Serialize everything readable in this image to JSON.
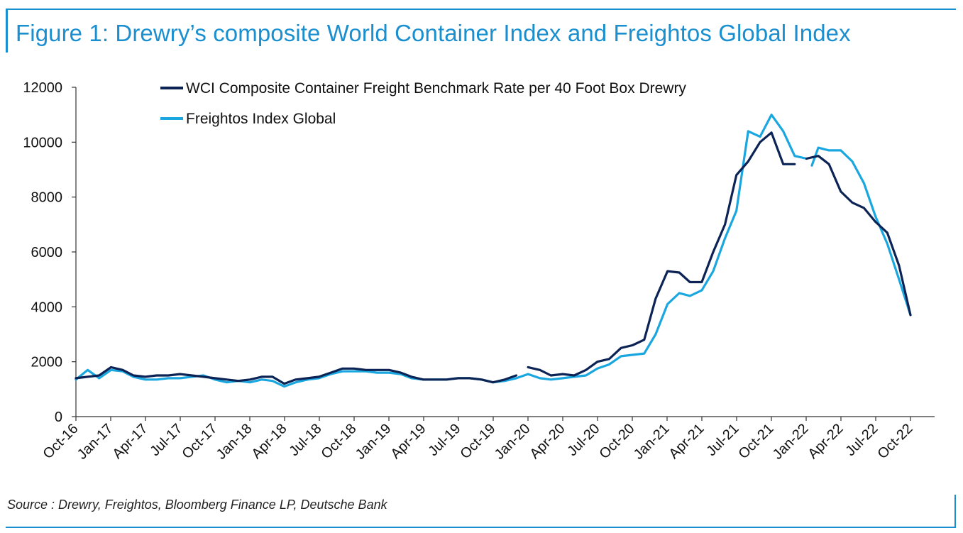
{
  "header": {
    "title": "Figure 1: Drewry’s composite World Container Index and Freightos Global Index"
  },
  "footer": {
    "source": "Source : Drewry, Freightos, Bloomberg Finance LP, Deutsche Bank"
  },
  "colors": {
    "accent": "#1a8fcf",
    "wci": "#0c2355",
    "freightos": "#1aa7e0"
  },
  "chart_data": {
    "type": "line",
    "ylim": [
      0,
      12000
    ],
    "y_ticks": [
      0,
      2000,
      4000,
      6000,
      8000,
      10000,
      12000
    ],
    "y_tick_labels": [
      "0",
      "2000",
      "4000",
      "6000",
      "8000",
      "10000",
      "12000"
    ],
    "x_range": [
      "2016-10",
      "2022-10"
    ],
    "x_tick_labels": [
      "Oct-16",
      "Jan-17",
      "Apr-17",
      "Jul-17",
      "Oct-17",
      "Jan-18",
      "Apr-18",
      "Jul-18",
      "Oct-18",
      "Jan-19",
      "Apr-19",
      "Jul-19",
      "Oct-19",
      "Jan-20",
      "Apr-20",
      "Jul-20",
      "Oct-20",
      "Jan-21",
      "Apr-21",
      "Jul-21",
      "Oct-21",
      "Jan-22",
      "Apr-22",
      "Jul-22",
      "Oct-22"
    ],
    "grid": false,
    "legend": "top-left",
    "series": [
      {
        "name": "WCI Composite Container Freight Benchmark Rate per 40 Foot Box Drewry",
        "color": "#0c2355",
        "points": [
          [
            "2016-10-01",
            1400
          ],
          [
            "2016-11-01",
            1450
          ],
          [
            "2016-12-01",
            1500
          ],
          [
            "2017-01-01",
            1800
          ],
          [
            "2017-02-01",
            1700
          ],
          [
            "2017-03-01",
            1500
          ],
          [
            "2017-04-01",
            1450
          ],
          [
            "2017-05-01",
            1500
          ],
          [
            "2017-06-01",
            1500
          ],
          [
            "2017-07-01",
            1550
          ],
          [
            "2017-08-01",
            1500
          ],
          [
            "2017-09-01",
            1450
          ],
          [
            "2017-10-01",
            1400
          ],
          [
            "2017-11-01",
            1350
          ],
          [
            "2017-12-01",
            1300
          ],
          [
            "2018-01-01",
            1350
          ],
          [
            "2018-02-01",
            1450
          ],
          [
            "2018-03-01",
            1450
          ],
          [
            "2018-04-01",
            1200
          ],
          [
            "2018-05-01",
            1350
          ],
          [
            "2018-06-01",
            1400
          ],
          [
            "2018-07-01",
            1450
          ],
          [
            "2018-08-01",
            1600
          ],
          [
            "2018-09-01",
            1750
          ],
          [
            "2018-10-01",
            1750
          ],
          [
            "2018-11-01",
            1700
          ],
          [
            "2018-12-01",
            1700
          ],
          [
            "2019-01-01",
            1700
          ],
          [
            "2019-02-01",
            1600
          ],
          [
            "2019-03-01",
            1450
          ],
          [
            "2019-04-01",
            1350
          ],
          [
            "2019-05-01",
            1350
          ],
          [
            "2019-06-01",
            1350
          ],
          [
            "2019-07-01",
            1400
          ],
          [
            "2019-08-01",
            1400
          ],
          [
            "2019-09-01",
            1350
          ],
          [
            "2019-10-01",
            1250
          ],
          [
            "2019-11-01",
            1350
          ],
          [
            "2019-12-01",
            1500
          ]
        ],
        "points_segment_2": [
          [
            "2020-01-01",
            1800
          ],
          [
            "2020-02-01",
            1700
          ],
          [
            "2020-03-01",
            1500
          ],
          [
            "2020-04-01",
            1550
          ],
          [
            "2020-05-01",
            1500
          ],
          [
            "2020-06-01",
            1700
          ],
          [
            "2020-07-01",
            2000
          ],
          [
            "2020-08-01",
            2100
          ],
          [
            "2020-09-01",
            2500
          ],
          [
            "2020-10-01",
            2600
          ],
          [
            "2020-11-01",
            2800
          ],
          [
            "2020-12-01",
            4300
          ],
          [
            "2021-01-01",
            5300
          ],
          [
            "2021-02-01",
            5250
          ],
          [
            "2021-03-01",
            4900
          ],
          [
            "2021-04-01",
            4900
          ],
          [
            "2021-05-01",
            6000
          ],
          [
            "2021-06-01",
            7000
          ],
          [
            "2021-07-01",
            8800
          ],
          [
            "2021-08-01",
            9300
          ],
          [
            "2021-09-01",
            10000
          ],
          [
            "2021-10-01",
            10350
          ],
          [
            "2021-11-01",
            9200
          ],
          [
            "2021-12-01",
            9200
          ]
        ],
        "points_segment_3": [
          [
            "2022-01-01",
            9400
          ],
          [
            "2022-02-01",
            9500
          ],
          [
            "2022-03-01",
            9200
          ],
          [
            "2022-04-01",
            8200
          ],
          [
            "2022-05-01",
            7800
          ],
          [
            "2022-06-01",
            7600
          ],
          [
            "2022-07-01",
            7100
          ],
          [
            "2022-08-01",
            6700
          ],
          [
            "2022-09-01",
            5500
          ],
          [
            "2022-10-01",
            3700
          ]
        ]
      },
      {
        "name": "Freightos Index Global",
        "color": "#1aa7e0",
        "points": [
          [
            "2016-10-01",
            1350
          ],
          [
            "2016-11-01",
            1700
          ],
          [
            "2016-12-01",
            1400
          ],
          [
            "2017-01-01",
            1700
          ],
          [
            "2017-02-01",
            1650
          ],
          [
            "2017-03-01",
            1450
          ],
          [
            "2017-04-01",
            1350
          ],
          [
            "2017-05-01",
            1350
          ],
          [
            "2017-06-01",
            1400
          ],
          [
            "2017-07-01",
            1400
          ],
          [
            "2017-08-01",
            1450
          ],
          [
            "2017-09-01",
            1500
          ],
          [
            "2017-10-01",
            1350
          ],
          [
            "2017-11-01",
            1250
          ],
          [
            "2017-12-01",
            1300
          ],
          [
            "2018-01-01",
            1250
          ],
          [
            "2018-02-01",
            1350
          ],
          [
            "2018-03-01",
            1300
          ],
          [
            "2018-04-01",
            1100
          ],
          [
            "2018-05-01",
            1250
          ],
          [
            "2018-06-01",
            1350
          ],
          [
            "2018-07-01",
            1400
          ],
          [
            "2018-08-01",
            1550
          ],
          [
            "2018-09-01",
            1650
          ],
          [
            "2018-10-01",
            1650
          ],
          [
            "2018-11-01",
            1650
          ],
          [
            "2018-12-01",
            1600
          ],
          [
            "2019-01-01",
            1600
          ],
          [
            "2019-02-01",
            1550
          ],
          [
            "2019-03-01",
            1400
          ],
          [
            "2019-04-01",
            1350
          ],
          [
            "2019-05-01",
            1350
          ],
          [
            "2019-06-01",
            1350
          ],
          [
            "2019-07-01",
            1400
          ],
          [
            "2019-08-01",
            1400
          ],
          [
            "2019-09-01",
            1350
          ],
          [
            "2019-10-01",
            1250
          ],
          [
            "2019-11-01",
            1300
          ],
          [
            "2019-12-01",
            1400
          ],
          [
            "2020-01-01",
            1550
          ],
          [
            "2020-02-01",
            1400
          ],
          [
            "2020-03-01",
            1350
          ],
          [
            "2020-04-01",
            1400
          ],
          [
            "2020-05-01",
            1450
          ],
          [
            "2020-06-01",
            1500
          ],
          [
            "2020-07-01",
            1750
          ],
          [
            "2020-08-01",
            1900
          ],
          [
            "2020-09-01",
            2200
          ],
          [
            "2020-10-01",
            2250
          ],
          [
            "2020-11-01",
            2300
          ],
          [
            "2020-12-01",
            3000
          ],
          [
            "2021-01-01",
            4100
          ],
          [
            "2021-02-01",
            4500
          ],
          [
            "2021-03-01",
            4400
          ],
          [
            "2021-04-01",
            4600
          ],
          [
            "2021-05-01",
            5300
          ],
          [
            "2021-06-01",
            6500
          ],
          [
            "2021-07-01",
            7500
          ],
          [
            "2021-08-01",
            10400
          ],
          [
            "2021-09-01",
            10200
          ],
          [
            "2021-10-01",
            11000
          ],
          [
            "2021-11-01",
            10400
          ],
          [
            "2021-12-01",
            9500
          ],
          [
            "2022-01-01",
            9400
          ]
        ],
        "points_segment_2": [
          [
            "2022-01-15",
            9150
          ],
          [
            "2022-02-01",
            9800
          ],
          [
            "2022-03-01",
            9700
          ],
          [
            "2022-04-01",
            9700
          ],
          [
            "2022-05-01",
            9300
          ],
          [
            "2022-06-01",
            8500
          ],
          [
            "2022-07-01",
            7300
          ],
          [
            "2022-08-01",
            6300
          ],
          [
            "2022-09-01",
            5000
          ],
          [
            "2022-10-01",
            3700
          ]
        ]
      }
    ]
  }
}
